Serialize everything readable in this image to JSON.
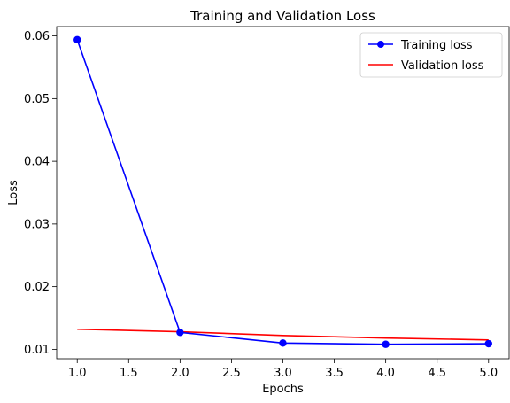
{
  "chart_data": {
    "type": "line",
    "title": "Training and Validation Loss",
    "xlabel": "Epochs",
    "ylabel": "Loss",
    "xlim": [
      0.8,
      5.2
    ],
    "ylim": [
      0.0085,
      0.0615
    ],
    "xticks": [
      "1.0",
      "1.5",
      "2.0",
      "2.5",
      "3.0",
      "3.5",
      "4.0",
      "4.5",
      "5.0"
    ],
    "yticks": [
      "0.01",
      "0.02",
      "0.03",
      "0.04",
      "0.05",
      "0.06"
    ],
    "grid": false,
    "legend_position": "top-right",
    "x": [
      1,
      2,
      3,
      4,
      5
    ],
    "series": [
      {
        "name": "Training loss",
        "values": [
          0.0594,
          0.0127,
          0.011,
          0.0108,
          0.0109
        ],
        "color": "#0000ff",
        "marker": "circle"
      },
      {
        "name": "Validation loss",
        "values": [
          0.0132,
          0.0128,
          0.0122,
          0.0118,
          0.0115
        ],
        "color": "#ff0000",
        "marker": "none"
      }
    ]
  }
}
